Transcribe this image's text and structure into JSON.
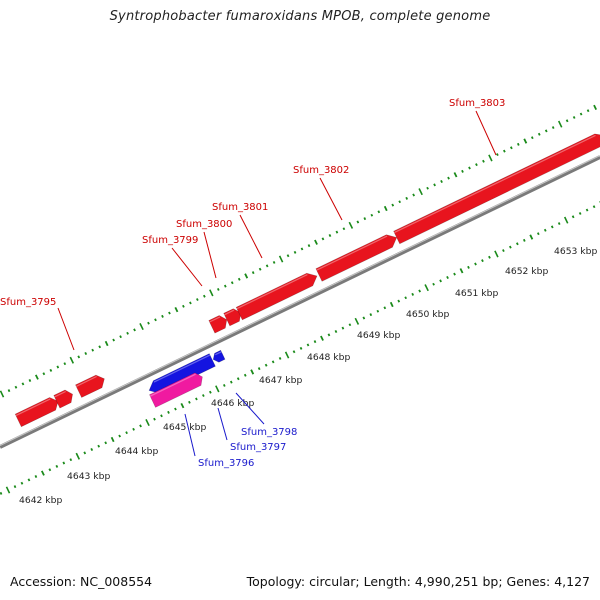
{
  "title": "Syntrophobacter fumaroxidans MPOB, complete genome",
  "footer": {
    "accession": "Accession: NC_008554",
    "summary": "Topology: circular; Length: 4,990,251 bp; Genes: 4,127"
  },
  "colors": {
    "forward_gene": "#e8141e",
    "reverse_gene": "#1414e0",
    "rna_gene": "#f01aa0",
    "tick": "#1a8a1a",
    "backbone": "#7a7a7a",
    "forward_label": "#cc0000",
    "reverse_label": "#1a1acc"
  },
  "scale": {
    "unit": "kbp",
    "ticks": [
      {
        "label": "4642 kbp"
      },
      {
        "label": "4643 kbp"
      },
      {
        "label": "4644 kbp"
      },
      {
        "label": "4645 kbp"
      },
      {
        "label": "4646 kbp"
      },
      {
        "label": "4647 kbp"
      },
      {
        "label": "4648 kbp"
      },
      {
        "label": "4649 kbp"
      },
      {
        "label": "4650 kbp"
      },
      {
        "label": "4651 kbp"
      },
      {
        "label": "4652 kbp"
      },
      {
        "label": "4653 kbp"
      }
    ]
  },
  "labels": [
    {
      "name": "Sfum_3795",
      "strand": "forward"
    },
    {
      "name": "Sfum_3799",
      "strand": "forward"
    },
    {
      "name": "Sfum_3800",
      "strand": "forward"
    },
    {
      "name": "Sfum_3801",
      "strand": "forward"
    },
    {
      "name": "Sfum_3802",
      "strand": "forward"
    },
    {
      "name": "Sfum_3803",
      "strand": "forward"
    },
    {
      "name": "Sfum_3796",
      "strand": "reverse"
    },
    {
      "name": "Sfum_3797",
      "strand": "reverse"
    },
    {
      "name": "Sfum_3798",
      "strand": "reverse"
    }
  ]
}
